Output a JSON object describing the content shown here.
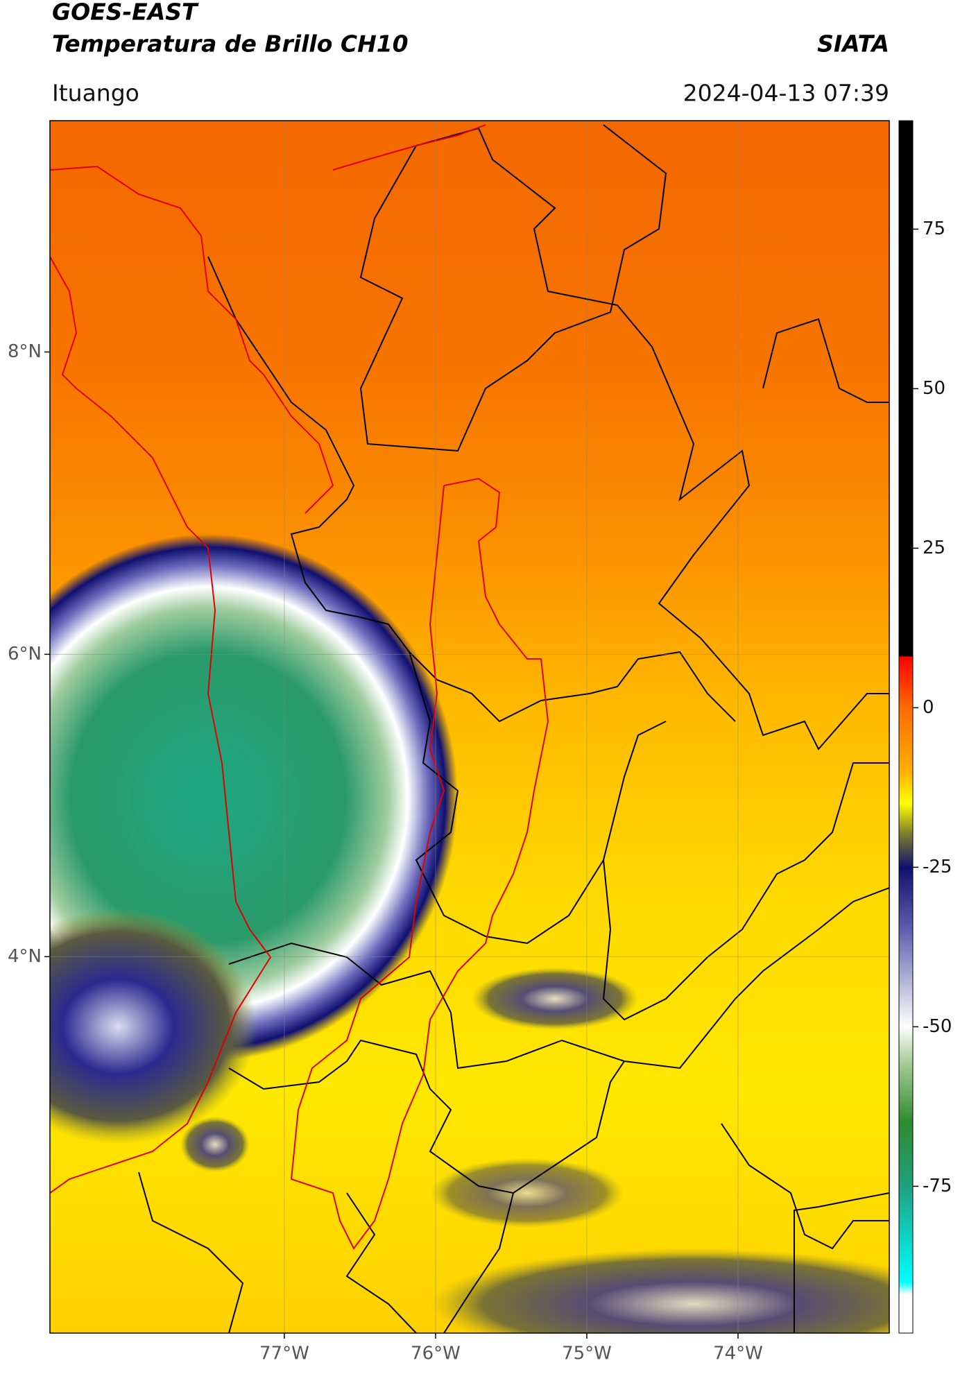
{
  "header": {
    "title": "GOES-EAST",
    "subtitle": "Temperatura de Brillo CH10",
    "source": "SIATA",
    "location": "Ituango",
    "datetime": "2024-04-13 07:39"
  },
  "map": {
    "xlim": [
      -78.55,
      -73.0
    ],
    "ylim": [
      1.51,
      9.53
    ],
    "xticks": [
      {
        "value": -77,
        "label": "77°W"
      },
      {
        "value": -76,
        "label": "76°W"
      },
      {
        "value": -75,
        "label": "75°W"
      },
      {
        "value": -74,
        "label": "74°W"
      }
    ],
    "yticks": [
      {
        "value": 8,
        "label": "8°N"
      },
      {
        "value": 6,
        "label": "6°N"
      },
      {
        "value": 4,
        "label": "4°N"
      }
    ],
    "grid": true
  },
  "colorbar": {
    "lim": [
      -98,
      92
    ],
    "ticks": [
      75,
      50,
      25,
      0,
      -25,
      -50,
      -75
    ]
  }
}
